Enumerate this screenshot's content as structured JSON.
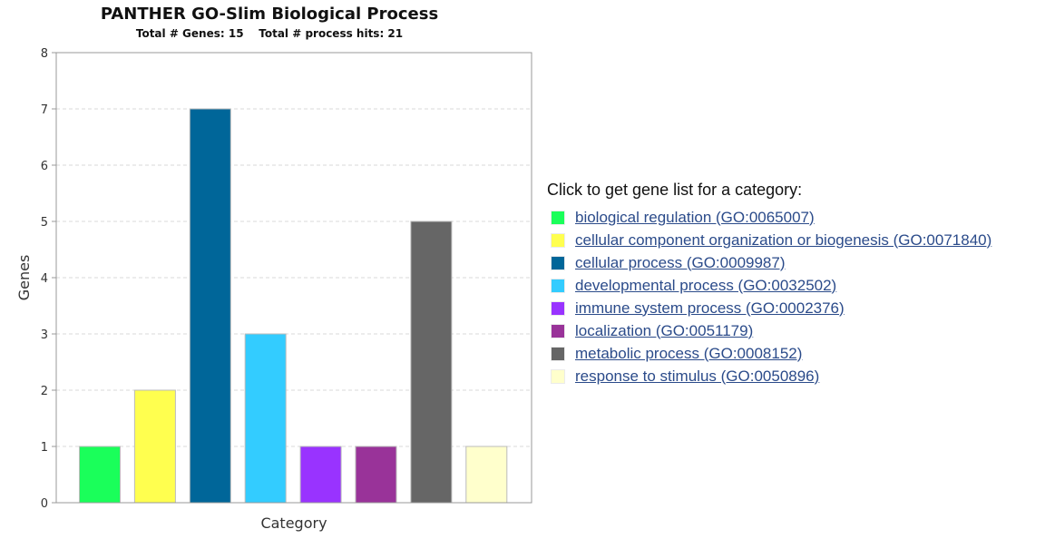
{
  "chart_data": {
    "type": "bar",
    "title": "PANTHER GO-Slim Biological Process",
    "subtitle": "Total # Genes: 15    Total # process hits: 21",
    "xlabel": "Category",
    "ylabel": "Genes",
    "ylim": [
      0,
      8
    ],
    "yticks": [
      "0",
      "1",
      "2",
      "3",
      "4",
      "5",
      "6",
      "7",
      "8"
    ],
    "grid": true,
    "legend_placement": "right",
    "categories": [
      "biological regulation",
      "cellular component organization or biogenesis",
      "cellular process",
      "developmental process",
      "immune system process",
      "localization",
      "metabolic process",
      "response to stimulus"
    ],
    "values": [
      1,
      2,
      7,
      3,
      1,
      1,
      5,
      1
    ],
    "colors": [
      "#1aff5a",
      "#ffff4f",
      "#006699",
      "#33ccff",
      "#9933ff",
      "#993399",
      "#666666",
      "#ffffcc"
    ]
  },
  "legend": {
    "heading": "Click to get gene list for a category:",
    "items": [
      {
        "label": "biological regulation (GO:0065007)",
        "color": "#1aff5a"
      },
      {
        "label": "cellular component organization or biogenesis (GO:0071840)",
        "color": "#ffff4f"
      },
      {
        "label": "cellular process (GO:0009987)",
        "color": "#006699"
      },
      {
        "label": "developmental process (GO:0032502)",
        "color": "#33ccff"
      },
      {
        "label": "immune system process (GO:0002376)",
        "color": "#9933ff"
      },
      {
        "label": "localization (GO:0051179)",
        "color": "#993399"
      },
      {
        "label": "metabolic process (GO:0008152)",
        "color": "#666666"
      },
      {
        "label": "response to stimulus (GO:0050896)",
        "color": "#ffffcc"
      }
    ]
  }
}
